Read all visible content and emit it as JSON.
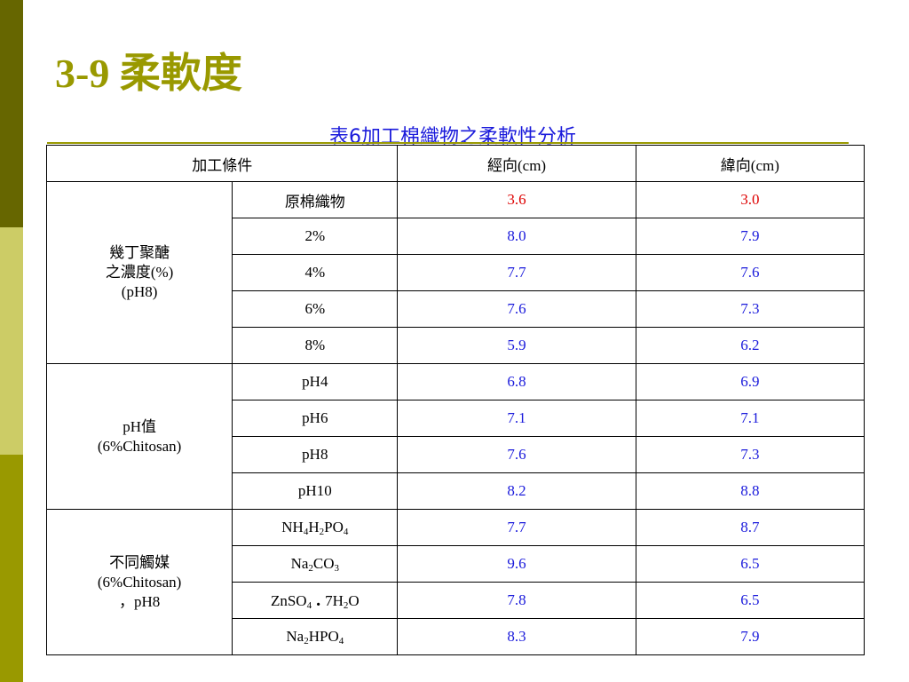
{
  "slide_title": "3-9 柔軟度",
  "table_caption": "表6加工棉織物之柔軟性分析",
  "header": {
    "condition": "加工條件",
    "warp": "經向(cm)",
    "weft": "緯向(cm)"
  },
  "groups": [
    {
      "label_lines": [
        "幾丁聚醣",
        "之濃度(%)",
        "(pH8)"
      ],
      "rows": [
        {
          "condition": "原棉織物",
          "warp": "3.6",
          "weft": "3.0",
          "color": "#dd0000"
        },
        {
          "condition": "2%",
          "warp": "8.0",
          "weft": "7.9",
          "color": "#1a1adb"
        },
        {
          "condition": "4%",
          "warp": "7.7",
          "weft": "7.6",
          "color": "#1a1adb"
        },
        {
          "condition": "6%",
          "warp": "7.6",
          "weft": "7.3",
          "color": "#1a1adb"
        },
        {
          "condition": "8%",
          "warp": "5.9",
          "weft": "6.2",
          "color": "#1a1adb"
        }
      ]
    },
    {
      "label_lines": [
        "pH值",
        "(6%Chitosan)"
      ],
      "rows": [
        {
          "condition": "pH4",
          "warp": "6.8",
          "weft": "6.9",
          "color": "#1a1adb"
        },
        {
          "condition": "pH6",
          "warp": "7.1",
          "weft": "7.1",
          "color": "#1a1adb"
        },
        {
          "condition": "pH8",
          "warp": "7.6",
          "weft": "7.3",
          "color": "#1a1adb"
        },
        {
          "condition": "pH10",
          "warp": "8.2",
          "weft": "8.8",
          "color": "#1a1adb"
        }
      ]
    },
    {
      "label_lines": [
        "不同觸媒",
        "(6%Chitosan)",
        "，pH8"
      ],
      "rows": [
        {
          "condition_parts": [
            [
              "NH",
              ""
            ],
            [
              "4",
              "sub"
            ],
            [
              "H",
              ""
            ],
            [
              "2",
              "sub"
            ],
            [
              "PO",
              ""
            ],
            [
              "4",
              "sub"
            ]
          ],
          "warp": "7.7",
          "weft": "8.7",
          "color": "#1a1adb"
        },
        {
          "condition_parts": [
            [
              "Na",
              ""
            ],
            [
              "2",
              "sub"
            ],
            [
              "CO",
              ""
            ],
            [
              "3",
              "sub"
            ]
          ],
          "warp": "9.6",
          "weft": "6.5",
          "color": "#1a1adb"
        },
        {
          "condition_parts": [
            [
              "ZnSO",
              ""
            ],
            [
              "4",
              "sub"
            ],
            [
              " . ",
              "dot"
            ],
            [
              "7H",
              ""
            ],
            [
              "2",
              "sub"
            ],
            [
              "O",
              ""
            ]
          ],
          "warp": "7.8",
          "weft": "6.5",
          "color": "#1a1adb"
        },
        {
          "condition_parts": [
            [
              "Na",
              ""
            ],
            [
              "2",
              "sub"
            ],
            [
              "HPO",
              ""
            ],
            [
              "4",
              "sub"
            ]
          ],
          "warp": "8.3",
          "weft": "7.9",
          "color": "#1a1adb"
        }
      ]
    }
  ],
  "colors": {
    "title": "#999900",
    "caption": "#1a1adb",
    "value_red": "#dd0000",
    "value_blue": "#1a1adb",
    "sidebar_dark": "#666600",
    "sidebar_light": "#cccc66",
    "sidebar_mid": "#999900"
  }
}
